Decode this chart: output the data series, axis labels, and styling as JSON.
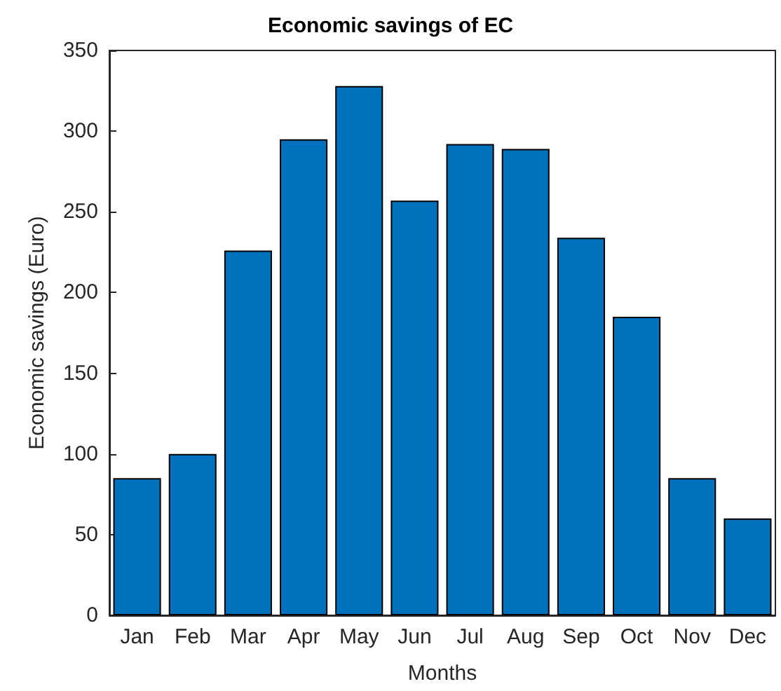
{
  "chart_data": {
    "type": "bar",
    "title": "Economic savings of EC",
    "xlabel": "Months",
    "ylabel": "Economic savings (Euro)",
    "categories": [
      "Jan",
      "Feb",
      "Mar",
      "Apr",
      "May",
      "Jun",
      "Jul",
      "Aug",
      "Sep",
      "Oct",
      "Nov",
      "Dec"
    ],
    "values": [
      85,
      100,
      226,
      295,
      328,
      257,
      292,
      289,
      234,
      185,
      85,
      60
    ],
    "color": "#0072bd",
    "ylim": [
      0,
      350
    ],
    "yticks": [
      0,
      50,
      100,
      150,
      200,
      250,
      300,
      350
    ],
    "grid": false
  }
}
